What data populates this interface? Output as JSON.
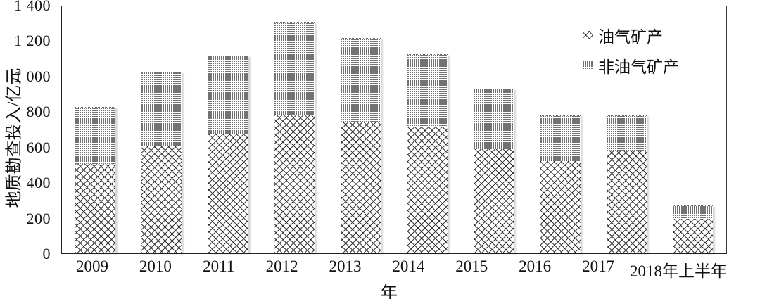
{
  "chart_data": {
    "type": "bar",
    "stacked": true,
    "title": "",
    "xlabel": "年",
    "ylabel": "地质勘查投入/亿元",
    "categories": [
      "2009",
      "2010",
      "2011",
      "2012",
      "2013",
      "2014",
      "2015",
      "2016",
      "2017",
      "2018年上半年"
    ],
    "series": [
      {
        "name": "油气矿产",
        "pattern": "crosshatch",
        "values": [
          500,
          605,
          665,
          775,
          735,
          710,
          585,
          515,
          575,
          190
        ]
      },
      {
        "name": "非油气矿产",
        "pattern": "dots",
        "values": [
          320,
          415,
          445,
          525,
          475,
          410,
          340,
          260,
          200,
          77
        ]
      }
    ],
    "totals": [
      820,
      1020,
      1110,
      1300,
      1210,
      1120,
      925,
      775,
      775,
      267
    ],
    "ylim": [
      0,
      1400
    ],
    "ytick_step": 200,
    "ytick_labels": [
      "0",
      "200",
      "400",
      "600",
      "800",
      "1 000",
      "1 200",
      "1 400"
    ],
    "grid": false,
    "legend_position": "top-right"
  },
  "colors": {
    "ink": "#111111",
    "pattern_stroke": "#333333",
    "bar_shadow": "#d9d9d9",
    "background": "#ffffff"
  }
}
